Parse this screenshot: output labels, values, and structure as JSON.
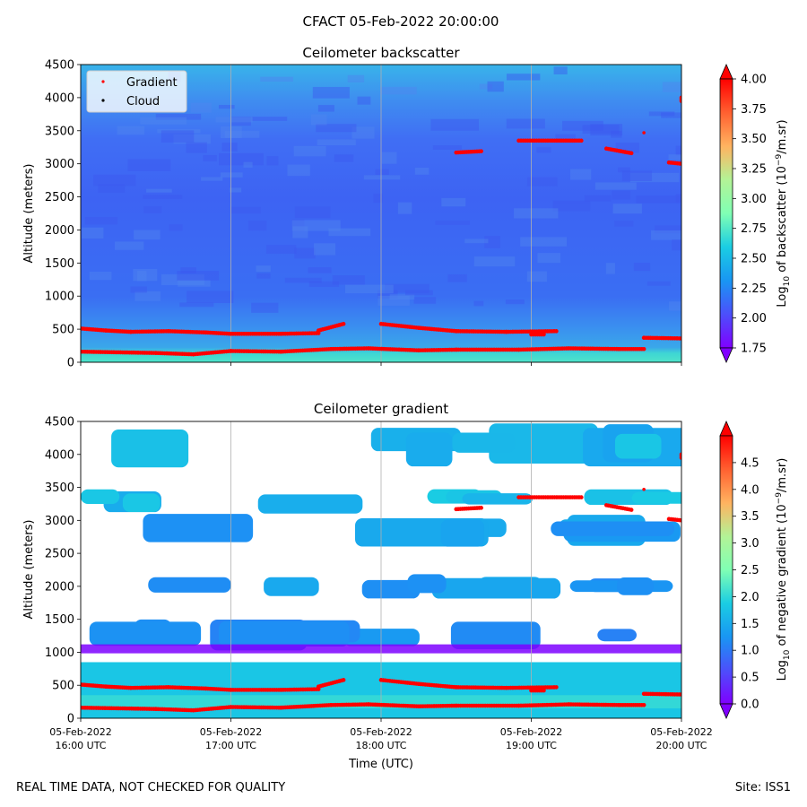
{
  "suptitle": "CFACT 05-Feb-2022 20:00:00",
  "footer": {
    "left": "REAL TIME DATA, NOT CHECKED FOR QUALITY",
    "right": "Site: ISS1"
  },
  "legend": {
    "placement": "upper-left",
    "entries": [
      {
        "label": "Gradient",
        "color": "#ff0000"
      },
      {
        "label": "Cloud",
        "color": "#000000"
      }
    ]
  },
  "shared_x": {
    "label": "Time (UTC)",
    "ticks": [
      {
        "date": "05-Feb-2022",
        "time": "16:00 UTC"
      },
      {
        "date": "05-Feb-2022",
        "time": "17:00 UTC"
      },
      {
        "date": "05-Feb-2022",
        "time": "18:00 UTC"
      },
      {
        "date": "05-Feb-2022",
        "time": "19:00 UTC"
      },
      {
        "date": "05-Feb-2022",
        "time": "20:00 UTC"
      }
    ]
  },
  "chart_data": [
    {
      "type": "heatmap",
      "title": "Ceilometer backscatter",
      "xlabel": "",
      "ylabel": "Altitude (meters)",
      "xlim": [
        "16:00",
        "20:00"
      ],
      "ylim": [
        0,
        4500
      ],
      "yticks": [
        "0",
        "500",
        "1000",
        "1500",
        "2000",
        "2500",
        "3000",
        "3500",
        "4000",
        "4500"
      ],
      "grid": "vertical at hourly ticks",
      "colorbar": {
        "label_prefix": "Log",
        "label_sub": "10",
        "label_mid": " of backscatter (10",
        "label_sup": "−9",
        "label_suffix": "/m.sr)",
        "range": [
          1.75,
          4.0
        ],
        "ticks": [
          "1.75",
          "2.00",
          "2.25",
          "2.50",
          "2.75",
          "3.00",
          "3.25",
          "3.50",
          "3.75",
          "4.00"
        ],
        "colormap": "rainbow",
        "extend": "both"
      },
      "field_description_values": {
        "surface_0_150m": 2.8,
        "150_500m": 2.5,
        "500_1000m": 2.15,
        "above_1000m": 2.1,
        "upper_patches_3500_4500m": 2.4
      },
      "series": [
        {
          "name": "Gradient",
          "color": "#ff0000",
          "segments": [
            [
              [
                "16:00",
                510
              ],
              [
                "16:10",
                480
              ],
              [
                "16:20",
                460
              ],
              [
                "16:35",
                470
              ],
              [
                "16:50",
                450
              ],
              [
                "17:00",
                430
              ],
              [
                "17:20",
                430
              ],
              [
                "17:35",
                440
              ]
            ],
            [
              [
                "17:35",
                480
              ],
              [
                "17:45",
                580
              ]
            ],
            [
              [
                "18:00",
                580
              ],
              [
                "18:15",
                520
              ],
              [
                "18:30",
                470
              ],
              [
                "18:50",
                460
              ],
              [
                "19:10",
                470
              ]
            ],
            [
              [
                "19:00",
                420
              ],
              [
                "19:05",
                420
              ]
            ],
            [
              [
                "19:45",
                370
              ],
              [
                "20:00",
                360
              ]
            ],
            [
              [
                "16:00",
                160
              ],
              [
                "16:30",
                140
              ],
              [
                "16:45",
                120
              ],
              [
                "17:00",
                170
              ],
              [
                "17:20",
                160
              ],
              [
                "17:40",
                200
              ],
              [
                "17:55",
                210
              ],
              [
                "18:15",
                180
              ],
              [
                "18:30",
                190
              ],
              [
                "18:55",
                190
              ],
              [
                "19:15",
                210
              ],
              [
                "19:35",
                200
              ],
              [
                "19:45",
                200
              ]
            ],
            [
              [
                "18:30",
                3170
              ],
              [
                "18:40",
                3190
              ]
            ],
            [
              [
                "18:55",
                3350
              ],
              [
                "19:20",
                3350
              ]
            ],
            [
              [
                "19:30",
                3230
              ],
              [
                "19:40",
                3160
              ]
            ],
            [
              [
                "19:55",
                3020
              ],
              [
                "20:00",
                3000
              ]
            ],
            [
              [
                "20:00",
                3950
              ],
              [
                "20:00",
                4000
              ]
            ],
            [
              [
                "19:45",
                3470
              ]
            ]
          ]
        }
      ]
    },
    {
      "type": "heatmap",
      "title": "Ceilometer gradient",
      "xlabel": "Time (UTC)",
      "ylabel": "Altitude (meters)",
      "xlim": [
        "16:00",
        "20:00"
      ],
      "ylim": [
        0,
        4500
      ],
      "yticks": [
        "0",
        "500",
        "1000",
        "1500",
        "2000",
        "2500",
        "3000",
        "3500",
        "4000",
        "4500"
      ],
      "grid": "vertical at hourly ticks",
      "colorbar": {
        "label_prefix": "Log",
        "label_sub": "10",
        "label_mid": " of negative gradient (10",
        "label_sup": "−9",
        "label_suffix": "/m.sr)",
        "range": [
          0.0,
          5.0
        ],
        "ticks": [
          "0.0",
          "0.5",
          "1.0",
          "1.5",
          "2.0",
          "2.5",
          "3.0",
          "3.5",
          "4.0",
          "4.5"
        ],
        "colormap": "rainbow",
        "extend": "both"
      },
      "bands_description": [
        {
          "altitude_m": [
            0,
            850
          ],
          "value": 1.8
        },
        {
          "altitude_m": [
            1000,
            1500
          ],
          "value": 1.2
        },
        {
          "altitude_m": [
            1800,
            2200
          ],
          "value": 1.3
        },
        {
          "altitude_m": [
            2600,
            3100
          ],
          "value": 1.3
        },
        {
          "altitude_m": [
            3100,
            3500
          ],
          "value": 1.7
        },
        {
          "altitude_m": [
            3800,
            4500
          ],
          "value": 1.6
        }
      ]
    }
  ]
}
